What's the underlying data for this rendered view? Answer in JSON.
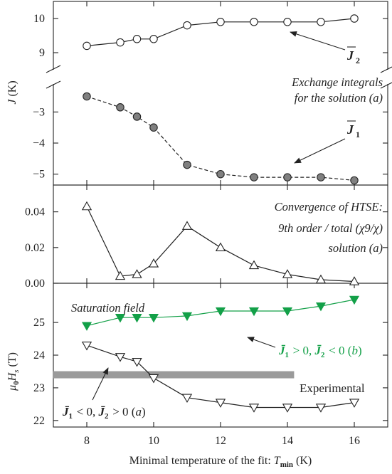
{
  "chart_data": [
    {
      "panel": "top",
      "type": "line",
      "ylabel": "J (K)",
      "annotation": [
        "Exchange integrals",
        "for the solution (a)"
      ],
      "broken_y_axis": true,
      "ylim_upper": [
        8.5,
        10.5
      ],
      "ylim_lower": [
        -5.35,
        -2.1
      ],
      "yticks_upper": [
        "9",
        "10"
      ],
      "yticks_lower": [
        "-3",
        "-4",
        "-5"
      ],
      "series": [
        {
          "name": "J̄2",
          "marker": "open-circle",
          "linestyle": "solid",
          "x": [
            8,
            9,
            9.5,
            10,
            11,
            12,
            13,
            14,
            15,
            16
          ],
          "y": [
            9.2,
            9.3,
            9.4,
            9.4,
            9.8,
            9.9,
            9.9,
            9.9,
            9.9,
            10.0
          ]
        },
        {
          "name": "J̄1",
          "marker": "grey-filled-circle",
          "linestyle": "dashed",
          "x": [
            8,
            9,
            9.5,
            10,
            11,
            12,
            13,
            14,
            15,
            16
          ],
          "y": [
            -2.5,
            -2.85,
            -3.15,
            -3.5,
            -4.7,
            -5.0,
            -5.1,
            -5.1,
            -5.1,
            -5.2
          ]
        }
      ]
    },
    {
      "panel": "middle",
      "type": "line",
      "ylabel": "",
      "annotation": [
        "Convergence of HTSE:",
        "9th order / total (χ9/χ)",
        "solution (a)"
      ],
      "ylim": [
        0,
        0.055
      ],
      "yticks": [
        "0.00",
        "0.02",
        "0.04"
      ],
      "series": [
        {
          "name": "",
          "marker": "open-triangle-up",
          "x": [
            8,
            9,
            9.5,
            10,
            11,
            12,
            13,
            14,
            15,
            16
          ],
          "y": [
            0.043,
            0.004,
            0.005,
            0.011,
            0.032,
            0.02,
            0.01,
            0.005,
            0.002,
            0.001
          ]
        }
      ]
    },
    {
      "panel": "bottom",
      "type": "line",
      "ylabel": "μ0Hs (T)",
      "annotation": [
        "Saturation field"
      ],
      "ylim": [
        21.8,
        26.2
      ],
      "yticks": [
        "22",
        "23",
        "24",
        "25"
      ],
      "series": [
        {
          "name": "J̄1 > 0, J̄2 < 0 (b)",
          "marker": "green-filled-triangle-down",
          "color": "#13a048",
          "x": [
            8,
            9,
            9.5,
            10,
            11,
            12,
            13,
            14,
            15,
            16
          ],
          "y": [
            24.9,
            25.15,
            25.15,
            25.15,
            25.2,
            25.35,
            25.35,
            25.35,
            25.5,
            25.7
          ]
        },
        {
          "name": "J̄1 < 0, J̄2 > 0 (a)",
          "marker": "open-triangle-down",
          "x": [
            8,
            9,
            9.5,
            10,
            11,
            12,
            13,
            14,
            15,
            16
          ],
          "y": [
            24.3,
            23.95,
            23.8,
            23.3,
            22.7,
            22.55,
            22.4,
            22.4,
            22.4,
            22.55
          ]
        }
      ],
      "experimental": {
        "label": "Experimental",
        "value": 23.4,
        "xrange": [
          7,
          14.2
        ],
        "color": "#9a9a9a"
      }
    }
  ],
  "shared_x": {
    "xlabel": "Minimal temperature of the fit: T",
    "xlabel_sub": "min",
    "xlabel_unit": " (K)",
    "xlim": [
      7,
      17
    ],
    "ticks": [
      8,
      10,
      12,
      14,
      16
    ],
    "tick_labels": [
      "8",
      "10",
      "12",
      "14",
      "16"
    ]
  }
}
